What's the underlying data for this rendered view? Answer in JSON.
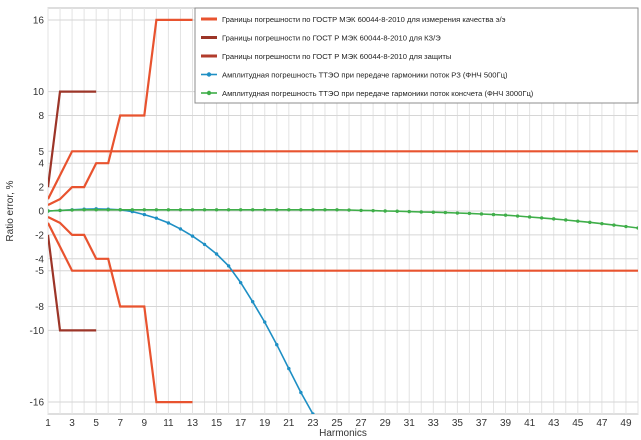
{
  "chart_data": {
    "type": "line",
    "xlabel": "Harmonics",
    "ylabel": "Ratio error, %",
    "xlim": [
      1,
      50
    ],
    "ylim": [
      -17,
      17
    ],
    "x_ticks": [
      1,
      3,
      5,
      7,
      9,
      11,
      13,
      15,
      17,
      19,
      21,
      23,
      25,
      27,
      29,
      31,
      33,
      35,
      37,
      39,
      41,
      43,
      45,
      47,
      49
    ],
    "y_ticks": [
      16,
      10,
      8,
      5,
      4,
      2,
      0,
      -2,
      -4,
      -5,
      -8,
      -10,
      -16
    ],
    "grid": true,
    "legend_position": "top-right",
    "colors": {
      "quality": "#e8532f",
      "kz": "#9c3528",
      "protection": "#b23c2c",
      "rz": "#1e8fc4",
      "consumer": "#3fae49"
    },
    "series": [
      {
        "name": "Границы погрешности по ГОСТР МЭК 60044-8-2010 для измерения качества э/э",
        "color": "#e8532f",
        "style": "limit",
        "segments": [
          [
            [
              1,
              0.5
            ],
            [
              2,
              1
            ],
            [
              3,
              2
            ],
            [
              4,
              2
            ],
            [
              5,
              4
            ],
            [
              6,
              4
            ],
            [
              7,
              8
            ],
            [
              9,
              8
            ],
            [
              10,
              16
            ],
            [
              13,
              16
            ]
          ],
          [
            [
              1,
              -0.5
            ],
            [
              2,
              -1
            ],
            [
              3,
              -2
            ],
            [
              4,
              -2
            ],
            [
              5,
              -4
            ],
            [
              6,
              -4
            ],
            [
              7,
              -8
            ],
            [
              9,
              -8
            ],
            [
              10,
              -16
            ],
            [
              13,
              -16
            ]
          ],
          [
            [
              1,
              1
            ],
            [
              3,
              5
            ],
            [
              50,
              5
            ]
          ],
          [
            [
              1,
              -1
            ],
            [
              3,
              -5
            ],
            [
              50,
              -5
            ]
          ]
        ]
      },
      {
        "name": "Границы погрешности по ГОСТ Р МЭК 60044-8-2010 для КЗ/Э",
        "color": "#9c3528",
        "style": "limit",
        "segments": [
          [
            [
              1,
              2
            ],
            [
              2,
              10
            ],
            [
              5,
              10
            ]
          ],
          [
            [
              1,
              -2
            ],
            [
              2,
              -10
            ],
            [
              5,
              -10
            ]
          ]
        ]
      },
      {
        "name": "Границы погрешности по ГОСТ Р МЭК 60044-8-2010 для защиты",
        "color": "#b23c2c",
        "style": "limit",
        "segments": []
      },
      {
        "name": "Амплитудная погрешность ТТЭО при передаче гармоники поток РЗ (ФНЧ 500Гц)",
        "color": "#1e8fc4",
        "style": "marker",
        "x": [
          1,
          2,
          3,
          4,
          5,
          6,
          7,
          8,
          9,
          10,
          11,
          12,
          13,
          14,
          15,
          16,
          17,
          18,
          19,
          20,
          21,
          22,
          23
        ],
        "values": [
          0,
          0.05,
          0.1,
          0.15,
          0.18,
          0.15,
          0.1,
          -0.05,
          -0.3,
          -0.6,
          -1.0,
          -1.5,
          -2.1,
          -2.8,
          -3.6,
          -4.6,
          -6.0,
          -7.6,
          -9.3,
          -11.2,
          -13.2,
          -15.2,
          -17
        ]
      },
      {
        "name": "Амплитудная погрешность ТТЭО при передаче гармоники поток консчета (ФНЧ 3000Гц)",
        "color": "#3fae49",
        "style": "marker",
        "x": [
          1,
          2,
          3,
          4,
          5,
          6,
          7,
          8,
          9,
          10,
          11,
          12,
          13,
          14,
          15,
          16,
          17,
          18,
          19,
          20,
          21,
          22,
          23,
          24,
          25,
          26,
          27,
          28,
          29,
          30,
          31,
          32,
          33,
          34,
          35,
          36,
          37,
          38,
          39,
          40,
          41,
          42,
          43,
          44,
          45,
          46,
          47,
          48,
          49,
          50
        ],
        "values": [
          0,
          0.05,
          0.08,
          0.1,
          0.1,
          0.1,
          0.1,
          0.1,
          0.1,
          0.1,
          0.1,
          0.1,
          0.1,
          0.1,
          0.1,
          0.1,
          0.1,
          0.1,
          0.1,
          0.1,
          0.1,
          0.1,
          0.1,
          0.1,
          0.1,
          0.08,
          0.05,
          0.03,
          0,
          -0.02,
          -0.05,
          -0.08,
          -0.1,
          -0.13,
          -0.17,
          -0.2,
          -0.25,
          -0.3,
          -0.35,
          -0.42,
          -0.5,
          -0.58,
          -0.66,
          -0.75,
          -0.85,
          -0.95,
          -1.06,
          -1.18,
          -1.3,
          -1.42
        ]
      }
    ]
  }
}
